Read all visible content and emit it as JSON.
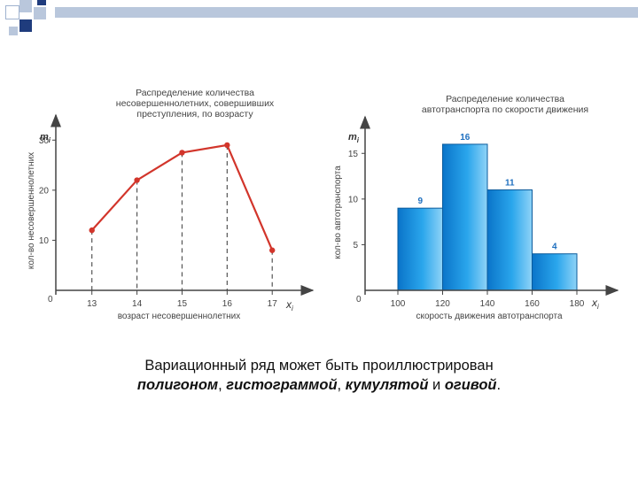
{
  "chart_data": [
    {
      "type": "line",
      "title_lines": [
        "Распределение количества",
        "несовершеннолетних, совершивших",
        "преступления, по возрасту"
      ],
      "y_axis_symbol": "m",
      "y_axis_symbol_sub": "i",
      "x_axis_symbol": "x",
      "x_axis_symbol_sub": "i",
      "ylabel": "кол-во несовершеннолетних",
      "xlabel": "возраст несовершеннолетних",
      "origin_label": "0",
      "x": [
        13,
        14,
        15,
        16,
        17
      ],
      "x_tick_labels": [
        "13",
        "14",
        "15",
        "16",
        "17"
      ],
      "y": [
        12,
        22,
        27.5,
        29,
        8
      ],
      "y_ticks": [
        10,
        20,
        30
      ],
      "y_tick_labels": [
        "10",
        "20",
        "30"
      ],
      "ylim": [
        0,
        35
      ],
      "xlim": [
        12.2,
        17.9
      ],
      "color": "#d2352b"
    },
    {
      "type": "bar",
      "title_lines": [
        "Распределение количества",
        "автотранспорта по скорости движения"
      ],
      "y_axis_symbol": "m",
      "y_axis_symbol_sub": "i",
      "x_axis_symbol": "x",
      "x_axis_symbol_sub": "i",
      "ylabel": "кол-во автотранспорта",
      "xlabel": "скорость движения автотранспорта",
      "origin_label": "0",
      "bins": [
        [
          100,
          120
        ],
        [
          120,
          140
        ],
        [
          140,
          160
        ],
        [
          160,
          180
        ]
      ],
      "values": [
        9,
        16,
        11,
        4
      ],
      "value_labels": [
        "9",
        "16",
        "11",
        "4"
      ],
      "x_tick_values": [
        100,
        120,
        140,
        160,
        180
      ],
      "x_tick_labels": [
        "100",
        "120",
        "140",
        "160",
        "180"
      ],
      "y_ticks": [
        5,
        10,
        15
      ],
      "y_tick_labels": [
        "5",
        "10",
        "15"
      ],
      "ylim": [
        0,
        19
      ],
      "xlim": [
        100,
        190
      ],
      "color": "#1e9be0"
    }
  ],
  "caption": {
    "line1": "Вариационный ряд может быть проиллюстрирован",
    "w1": "полигоном",
    "sep1": ", ",
    "w2": "гистограммой",
    "sep2": ", ",
    "w3": "кумулятой",
    "sep3": " и ",
    "w4": "огивой",
    "end": "."
  }
}
